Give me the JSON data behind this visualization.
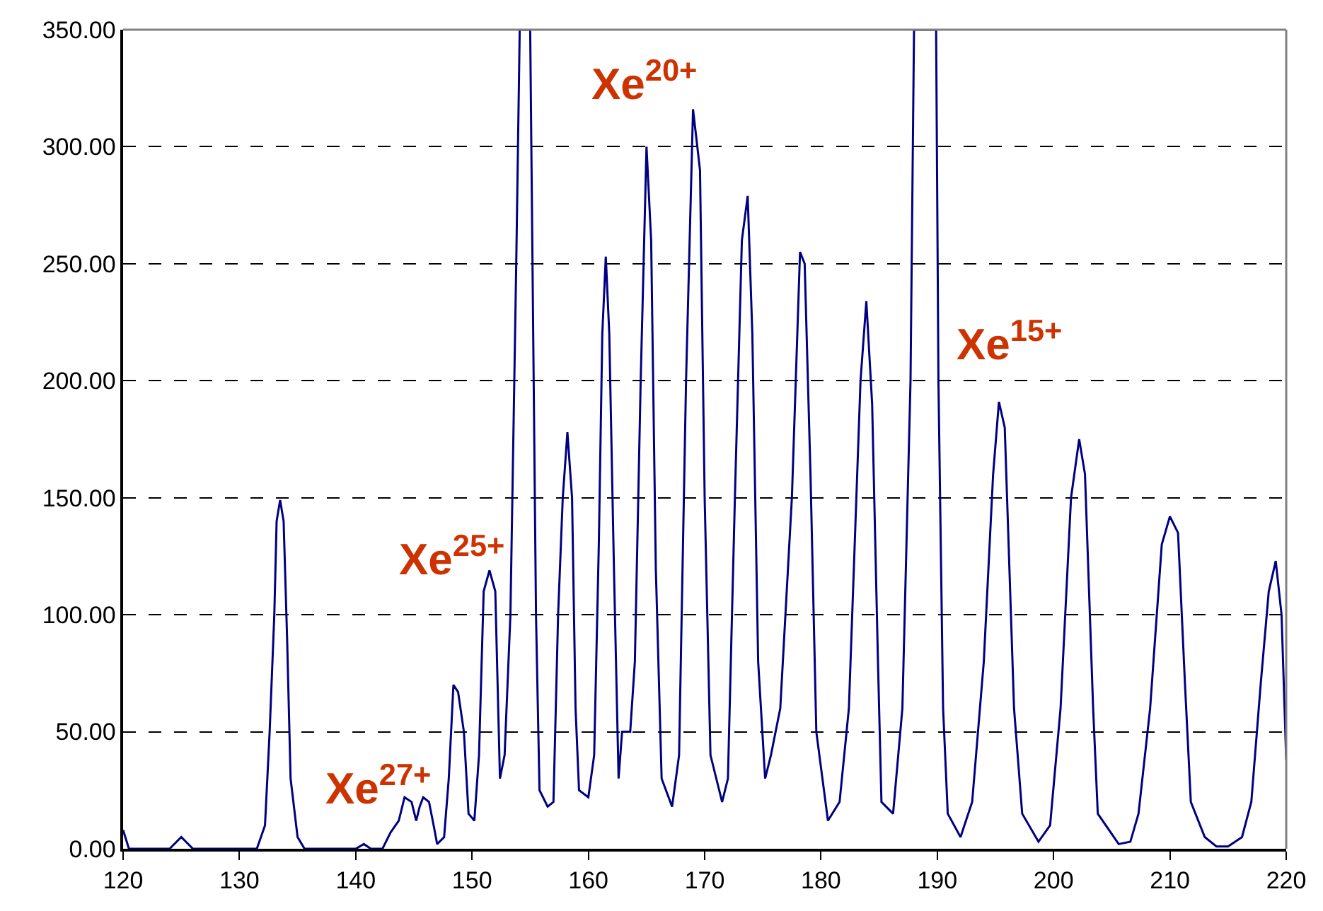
{
  "chart_data": {
    "type": "line",
    "x": [
      120,
      120.5,
      124,
      125,
      126,
      131.5,
      132.2,
      132.6,
      133,
      133.2,
      133.5,
      133.8,
      134.1,
      134.4,
      135,
      135.6,
      140,
      140.7,
      141.3,
      142.3,
      143,
      143.7,
      144.2,
      144.8,
      145.2,
      145.5,
      145.8,
      146.3,
      146.7,
      147,
      147.6,
      148,
      148.4,
      148.8,
      149.3,
      149.7,
      150.2,
      150.6,
      151,
      151.5,
      152,
      152.4,
      152.8,
      153.3,
      153.8,
      154.1,
      155.0,
      155.2,
      155.5,
      155.8,
      156.5,
      157,
      157.4,
      157.8,
      158.2,
      158.6,
      158.9,
      159.2,
      160,
      160.5,
      160.9,
      161.2,
      161.5,
      161.8,
      162.2,
      162.6,
      162.9,
      163.6,
      164,
      164.5,
      165,
      165.4,
      165.8,
      166.3,
      167.2,
      167.8,
      168.4,
      169,
      169.6,
      170,
      170.5,
      171.5,
      172,
      172.6,
      173.2,
      173.7,
      174.1,
      174.6,
      175.2,
      175.7,
      176.5,
      177.5,
      178.2,
      178.6,
      179.1,
      179.6,
      180.6,
      181.6,
      182.4,
      183.4,
      183.9,
      184.4,
      184.9,
      185.2,
      186.2,
      187,
      187.7,
      188,
      189.9,
      190.1,
      190.5,
      190.9,
      192,
      193,
      194,
      194.8,
      195.3,
      195.8,
      196.6,
      197.3,
      198.7,
      199.7,
      200.6,
      201.5,
      202.2,
      202.7,
      203.4,
      203.8,
      205.6,
      206.6,
      207.3,
      208.3,
      209.3,
      210,
      210.7,
      211.3,
      211.8,
      213,
      214,
      215,
      216.2,
      217,
      217.8,
      218.5,
      219.1,
      219.6,
      220
    ],
    "series": [
      {
        "color": "#000080",
        "values": [
          8,
          0,
          0,
          5,
          0,
          0,
          10,
          50,
          100,
          140,
          149,
          140,
          90,
          30,
          5,
          0,
          0,
          2,
          0,
          0,
          7,
          12,
          22,
          20,
          12,
          18,
          22,
          20,
          10,
          2,
          5,
          30,
          70,
          67,
          50,
          15,
          12,
          40,
          110,
          119,
          110,
          30,
          40,
          100,
          250,
          350,
          350,
          250,
          100,
          25,
          18,
          20,
          100,
          150,
          178,
          150,
          60,
          25,
          22,
          40,
          130,
          220,
          253,
          220,
          120,
          30,
          50,
          50,
          80,
          200,
          300,
          260,
          120,
          30,
          18,
          40,
          200,
          316,
          290,
          150,
          40,
          20,
          30,
          150,
          260,
          279,
          220,
          80,
          30,
          40,
          60,
          150,
          255,
          250,
          160,
          50,
          12,
          20,
          60,
          200,
          234,
          190,
          80,
          20,
          15,
          60,
          200,
          350,
          350,
          200,
          60,
          15,
          5,
          20,
          80,
          160,
          191,
          180,
          60,
          15,
          3,
          10,
          60,
          150,
          175,
          160,
          60,
          15,
          2,
          3,
          15,
          60,
          130,
          142,
          135,
          70,
          20,
          5,
          1,
          1,
          5,
          20,
          70,
          110,
          123,
          100,
          38
        ]
      }
    ],
    "xlim": [
      120,
      220
    ],
    "xticks": [
      120,
      130,
      140,
      150,
      160,
      170,
      180,
      190,
      200,
      210,
      220
    ],
    "ylim": [
      0,
      350
    ],
    "yticks": [
      {
        "value": 0,
        "label": "0.00"
      },
      {
        "value": 50,
        "label": "50.00"
      },
      {
        "value": 100,
        "label": "100.00"
      },
      {
        "value": 150,
        "label": "150.00"
      },
      {
        "value": 200,
        "label": "200.00"
      },
      {
        "value": 250,
        "label": "250.00"
      },
      {
        "value": 300,
        "label": "300.00"
      },
      {
        "value": 350,
        "label": "350.00"
      }
    ],
    "grid": "y",
    "marker": "none",
    "line_style": "solid",
    "annotations": [
      "Xe$^{27+}$",
      "Xe$^{25+}$",
      "Xe$^{20+}$",
      "Xe$^{15+}$"
    ]
  }
}
